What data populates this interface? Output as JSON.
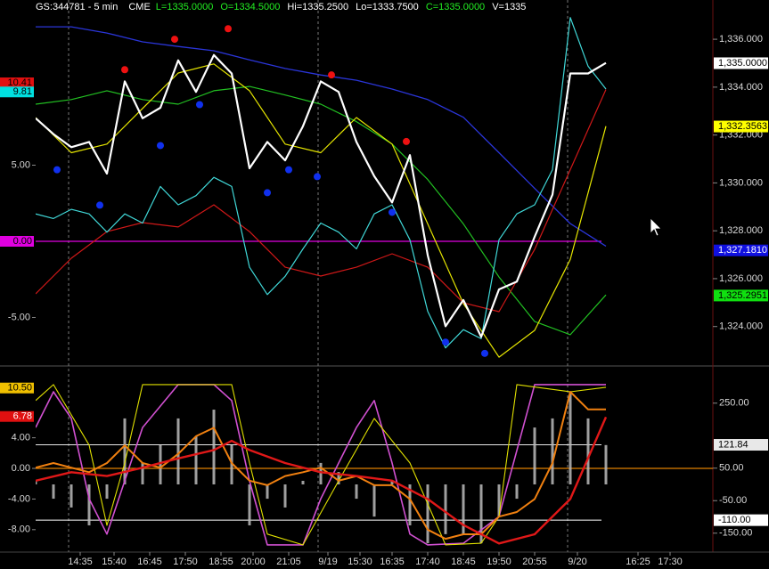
{
  "chart_data": [
    {
      "type": "line",
      "title": "GS:344781 - 5 min",
      "exchange": "CME",
      "quotes": [
        {
          "label": "L=1335.0000",
          "color": "#22ee22"
        },
        {
          "label": "O=1334.5000",
          "color": "#22ee22"
        },
        {
          "label": "Hi=1335.2500",
          "color": "#ffffff"
        },
        {
          "label": "Lo=1333.7500",
          "color": "#ffffff"
        },
        {
          "label": "C=1335.0000",
          "color": "#22ee22"
        },
        {
          "label": "V=1335",
          "color": "#ffffff"
        }
      ],
      "xlim": [
        0,
        190
      ],
      "ylim": [
        -8.13,
        15.85
      ],
      "yticks": [
        {
          "value": 5,
          "label": "5.00"
        },
        {
          "value": -5,
          "label": "-5.00"
        }
      ],
      "y2lim": [
        1322.39,
        1337.64
      ],
      "y2ticks": [
        {
          "value": 1336,
          "label": "1,336.000"
        },
        {
          "value": 1334,
          "label": "1,334.000"
        },
        {
          "value": 1332,
          "label": "1,332.000"
        },
        {
          "value": 1330,
          "label": "1,330.000"
        },
        {
          "value": 1328,
          "label": "1,328.000"
        },
        {
          "value": 1326,
          "label": "1,326.000"
        },
        {
          "value": 1324,
          "label": "1,324.000"
        }
      ],
      "left_markers": [
        {
          "value": 10.41,
          "label": "10.41",
          "color": "#e01010",
          "text_color": "#000000"
        },
        {
          "value": 9.81,
          "label": "9.81",
          "color": "#00e0e0",
          "text_color": "#000000"
        },
        {
          "value": 0,
          "label": "0.00",
          "color": "#e000e0",
          "text_color": "#000000",
          "line": true
        }
      ],
      "right_markers": [
        {
          "value": 1335,
          "label": "1,335.0000",
          "color": "#ffffff",
          "text_color": "#000000"
        },
        {
          "value": 1332.3563,
          "label": "1,332.3563",
          "color": "#ffff00",
          "text_color": "#000000"
        },
        {
          "value": 1327.181,
          "label": "1,327.1810",
          "color": "#1010e0",
          "text_color": "#ffffff"
        },
        {
          "value": 1325.2951,
          "label": "1,325.2951",
          "color": "#10e010",
          "text_color": "#000000"
        }
      ],
      "series": [
        {
          "type": "line",
          "axis": "y2",
          "color": "#2a35d8",
          "width": 1.3,
          "x": [
            0,
            10,
            20,
            30,
            40,
            50,
            60,
            70,
            80,
            90,
            100,
            110,
            120,
            130,
            140,
            150,
            160
          ],
          "values": [
            1336.52,
            1336.52,
            1336.26,
            1335.89,
            1335.7,
            1335.52,
            1335.14,
            1334.78,
            1334.51,
            1334.29,
            1333.92,
            1333.48,
            1332.74,
            1331.26,
            1329.77,
            1328.3,
            1327.36
          ]
        },
        {
          "type": "line",
          "axis": "y2",
          "color": "#22c022",
          "width": 1.2,
          "x": [
            0,
            10,
            20,
            30,
            40,
            50,
            60,
            70,
            80,
            90,
            100,
            110,
            120,
            130,
            140,
            150,
            160
          ],
          "values": [
            1333.29,
            1333.48,
            1333.85,
            1333.48,
            1333.29,
            1333.85,
            1334.03,
            1333.67,
            1333.29,
            1332.56,
            1331.62,
            1330.14,
            1328.29,
            1326.07,
            1324.21,
            1323.66,
            1325.32
          ]
        },
        {
          "type": "line",
          "axis": "y2",
          "color": "#e6e600",
          "width": 1.2,
          "x": [
            0,
            10,
            20,
            30,
            40,
            50,
            60,
            70,
            80,
            90,
            100,
            110,
            120,
            130,
            140,
            150,
            160
          ],
          "values": [
            1332.73,
            1331.26,
            1331.62,
            1333.11,
            1334.59,
            1334.97,
            1333.85,
            1331.62,
            1331.26,
            1332.73,
            1331.62,
            1328.29,
            1324.96,
            1322.72,
            1323.84,
            1326.8,
            1332.37
          ]
        },
        {
          "type": "line",
          "axis": "y",
          "color": "#d01818",
          "width": 1.2,
          "x": [
            0,
            10,
            20,
            30,
            40,
            50,
            60,
            70,
            80,
            90,
            100,
            110,
            120,
            130,
            140,
            150,
            160
          ],
          "values": [
            -3.45,
            -1.11,
            0.64,
            1.23,
            0.94,
            2.4,
            0.64,
            -1.7,
            -2.28,
            -1.7,
            -0.82,
            -1.7,
            -4.04,
            -4.62,
            -0.53,
            4.71,
            9.97
          ]
        },
        {
          "type": "line",
          "axis": "y",
          "color": "#40d8d8",
          "width": 1.2,
          "x": [
            0,
            5,
            10,
            15,
            20,
            25,
            30,
            35,
            40,
            45,
            50,
            55,
            60,
            65,
            70,
            75,
            80,
            85,
            90,
            95,
            100,
            105,
            110,
            115,
            120,
            125,
            130,
            135,
            140,
            145,
            150,
            155,
            160
          ],
          "values": [
            1.8,
            1.5,
            2.1,
            1.8,
            0.6,
            1.8,
            1.2,
            3.6,
            2.4,
            3.0,
            4.2,
            3.6,
            -1.7,
            -3.5,
            -2.3,
            -0.5,
            1.2,
            0.6,
            -0.5,
            1.8,
            2.4,
            0.1,
            -4.6,
            -7.0,
            -5.8,
            -6.4,
            0.1,
            1.8,
            2.4,
            4.7,
            14.7,
            11.5,
            10.0
          ]
        },
        {
          "type": "line",
          "axis": "y2",
          "color": "#ffffff",
          "width": 2.2,
          "x": [
            0,
            5,
            10,
            15,
            20,
            25,
            30,
            35,
            40,
            45,
            50,
            55,
            60,
            65,
            70,
            75,
            80,
            85,
            90,
            95,
            100,
            105,
            110,
            115,
            120,
            125,
            130,
            135,
            140,
            145,
            150,
            155,
            160
          ],
          "values": [
            1332.7,
            1332.04,
            1331.49,
            1331.71,
            1330.39,
            1334.24,
            1332.7,
            1333.14,
            1335.12,
            1333.8,
            1335.34,
            1334.57,
            1330.61,
            1331.71,
            1330.94,
            1332.37,
            1334.24,
            1333.8,
            1331.71,
            1330.28,
            1329.18,
            1331.16,
            1326.98,
            1324.01,
            1325.11,
            1323.57,
            1325.55,
            1325.88,
            1327.75,
            1329.51,
            1334.57,
            1334.57,
            1335.01
          ]
        },
        {
          "type": "scatter",
          "axis": "y2",
          "color": "#ee1111",
          "x": [
            25,
            39,
            54,
            83,
            104
          ],
          "values": [
            1334.73,
            1336.0,
            1336.44,
            1334.51,
            1331.73
          ]
        },
        {
          "type": "scatter",
          "axis": "y2",
          "color": "#1030ee",
          "x": [
            6,
            18,
            35,
            46,
            65,
            71,
            79,
            100,
            115,
            126
          ],
          "values": [
            1330.55,
            1329.07,
            1331.56,
            1333.27,
            1329.59,
            1330.55,
            1330.26,
            1328.77,
            1323.35,
            1322.88
          ]
        }
      ]
    },
    {
      "type": "line",
      "xlim": [
        0,
        190
      ],
      "ylim": [
        -10.93,
        13.26
      ],
      "yticks": [
        {
          "value": 4,
          "label": "4.00"
        },
        {
          "value": 0,
          "label": "0.00"
        },
        {
          "value": -4,
          "label": "-4.00"
        },
        {
          "value": -8,
          "label": "-8.00"
        }
      ],
      "y2lim": [
        -208.2,
        361.6
      ],
      "y2ticks": [
        {
          "value": 250,
          "label": "250.00"
        },
        {
          "value": 50,
          "label": "50.00"
        },
        {
          "value": -50,
          "label": "-50.00"
        },
        {
          "value": -150,
          "label": "-150.00"
        }
      ],
      "xticks": [
        {
          "value": 12.5,
          "label": "14:35"
        },
        {
          "value": 22,
          "label": "15:40"
        },
        {
          "value": 32,
          "label": "16:45"
        },
        {
          "value": 42,
          "label": "17:50"
        },
        {
          "value": 52,
          "label": "18:55"
        },
        {
          "value": 61,
          "label": "20:00"
        },
        {
          "value": 71,
          "label": "21:05"
        },
        {
          "value": 82,
          "label": "9/19"
        },
        {
          "value": 91,
          "label": "15:30"
        },
        {
          "value": 100,
          "label": "16:35"
        },
        {
          "value": 110,
          "label": "17:40"
        },
        {
          "value": 120,
          "label": "18:45"
        },
        {
          "value": 130,
          "label": "19:50"
        },
        {
          "value": 140,
          "label": "20:55"
        },
        {
          "value": 152,
          "label": "9/20"
        },
        {
          "value": 169,
          "label": "16:25"
        },
        {
          "value": 178,
          "label": "17:30"
        }
      ],
      "left_markers": [
        {
          "value": 10.5,
          "label": "10.50",
          "color": "#f0c000",
          "text_color": "#000000"
        },
        {
          "value": 6.78,
          "label": "6.78",
          "color": "#e01010",
          "text_color": "#ffffff"
        }
      ],
      "right_markers": [
        {
          "value": 121.84,
          "label": "121.84",
          "color": "#e8e8e8",
          "text_color": "#000000",
          "line": true
        },
        {
          "value": -110,
          "label": "-110.00",
          "color": "#ffffff",
          "text_color": "#000000",
          "line": true
        }
      ],
      "hlines": [
        {
          "value": 0,
          "axis": "y",
          "color": "#e08000"
        }
      ],
      "series": [
        {
          "type": "bar",
          "axis": "y2",
          "color": "#bbbbbb",
          "x": [
            0,
            5,
            10,
            15,
            20,
            25,
            30,
            35,
            40,
            45,
            50,
            55,
            60,
            65,
            70,
            75,
            80,
            85,
            90,
            95,
            100,
            105,
            110,
            115,
            120,
            125,
            130,
            135,
            140,
            145,
            150,
            155,
            160
          ],
          "values": [
            11,
            -44,
            -71,
            -126,
            -44,
            203,
            66,
            121,
            203,
            148,
            230,
            121,
            -126,
            -44,
            -71,
            11,
            66,
            38,
            -44,
            -99,
            11,
            -126,
            -181,
            -153,
            -153,
            -181,
            -99,
            -44,
            175,
            203,
            285,
            203,
            121
          ]
        },
        {
          "type": "line",
          "axis": "y2",
          "color": "#d050d0",
          "width": 1.6,
          "x": [
            0,
            5,
            10,
            15,
            20,
            25,
            30,
            40,
            50,
            55,
            60,
            65,
            70,
            75,
            80,
            90,
            95,
            100,
            105,
            110,
            120,
            130,
            140,
            150,
            160
          ],
          "values": [
            175,
            285,
            203,
            -44,
            -153,
            11,
            175,
            307,
            307,
            258,
            11,
            -186,
            -186,
            -186,
            -44,
            175,
            258,
            66,
            -153,
            -186,
            -181,
            -99,
            307,
            307,
            307
          ]
        },
        {
          "type": "line",
          "axis": "y2",
          "color": "#e0e000",
          "width": 1.1,
          "x": [
            0,
            5,
            15,
            20,
            25,
            30,
            40,
            55,
            60,
            65,
            75,
            85,
            95,
            105,
            115,
            125,
            130,
            135,
            150,
            160
          ],
          "values": [
            258,
            307,
            121,
            -126,
            66,
            307,
            307,
            307,
            66,
            -153,
            -186,
            11,
            203,
            66,
            -186,
            -181,
            -99,
            307,
            285,
            299
          ]
        },
        {
          "type": "line",
          "axis": "y",
          "color": "#f08010",
          "width": 2,
          "x": [
            0,
            5,
            10,
            15,
            20,
            25,
            30,
            35,
            40,
            45,
            50,
            55,
            60,
            65,
            70,
            75,
            80,
            85,
            90,
            95,
            100,
            105,
            110,
            115,
            120,
            125,
            130,
            135,
            140,
            145,
            150,
            155,
            160
          ],
          "values": [
            0.1,
            0.7,
            0.1,
            -0.5,
            0.7,
            3.0,
            0.7,
            0.1,
            1.9,
            4.2,
            5.3,
            0.7,
            -1.6,
            -2.2,
            -1.0,
            -0.5,
            0.1,
            -1.6,
            -1.0,
            -2.2,
            -2.2,
            -4.0,
            -8.0,
            -9.2,
            -8.6,
            -8.6,
            -6.3,
            -5.7,
            -4.0,
            0.7,
            10.0,
            7.7,
            7.7
          ]
        },
        {
          "type": "line",
          "axis": "y",
          "color": "#e01818",
          "width": 2.4,
          "x": [
            0,
            10,
            20,
            30,
            40,
            50,
            55,
            60,
            70,
            80,
            90,
            100,
            110,
            120,
            130,
            140,
            150,
            160
          ],
          "values": [
            -1.6,
            -0.5,
            -1.0,
            0.1,
            1.3,
            2.4,
            3.6,
            2.4,
            0.7,
            -0.5,
            -1.0,
            -1.6,
            -4.0,
            -7.4,
            -9.8,
            -8.6,
            -4.0,
            6.7
          ]
        }
      ]
    }
  ]
}
